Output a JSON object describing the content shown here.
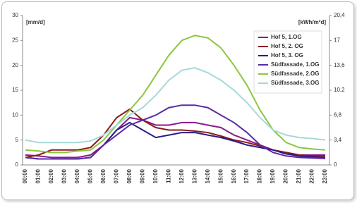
{
  "chart_data": {
    "type": "line",
    "y_label": "[mm/d]",
    "y2_label": "[kWh/m²d]",
    "categories": [
      "00:00",
      "01:00",
      "02:00",
      "03:00",
      "04:00",
      "05:00",
      "06:00",
      "07:00",
      "08:00",
      "09:00",
      "10:00",
      "11:00",
      "12:00",
      "13:00",
      "14:00",
      "15:00",
      "16:00",
      "17:00",
      "18:00",
      "19:00",
      "20:00",
      "21:00",
      "22:00",
      "23:00"
    ],
    "ylim": [
      0,
      30
    ],
    "yticks": [
      0,
      5,
      10,
      15,
      20,
      25,
      30
    ],
    "y2lim": [
      0,
      20.4
    ],
    "y2ticks": [
      0,
      {
        "value": 3.4,
        "label": "3,4"
      },
      {
        "value": 6.8,
        "label": "6,8"
      },
      {
        "value": 10.2,
        "label": "10,2"
      },
      {
        "value": 13.6,
        "label": "13,6"
      },
      17,
      {
        "value": 20.4,
        "label": "20,4"
      }
    ],
    "series": [
      {
        "name": "Hof 5, 1.OG",
        "color": "#8b1a8b",
        "values": [
          2,
          1.8,
          1.5,
          1.5,
          1.5,
          2,
          4,
          7,
          9.5,
          9,
          8,
          8,
          8.5,
          8.5,
          8,
          7.5,
          6,
          5,
          4,
          3,
          2.5,
          2,
          2,
          2
        ]
      },
      {
        "name": "Hof 5, 2. OG",
        "color": "#8b1a1a",
        "values": [
          1.5,
          2,
          3,
          3,
          3,
          3.5,
          6,
          9.5,
          11.2,
          9,
          7.5,
          7,
          7,
          6.8,
          6.5,
          5.8,
          5,
          4.5,
          3.8,
          3,
          2.5,
          2,
          1.8,
          1.8
        ]
      },
      {
        "name": "Hof 5, 3. OG",
        "color": "#2a1a8b",
        "values": [
          1.5,
          1.2,
          1.2,
          1.2,
          1.2,
          1.5,
          4,
          7,
          8.5,
          7,
          5.5,
          6,
          6.5,
          6.5,
          6,
          5.5,
          4.8,
          4,
          3.5,
          3,
          2.2,
          1.8,
          1.6,
          1.5
        ]
      },
      {
        "name": "Südfassade, 1.OG",
        "color": "#5a2aa8",
        "values": [
          1.5,
          1.2,
          1.2,
          1.2,
          1.2,
          1.5,
          4,
          6,
          8,
          9,
          10,
          11.5,
          12,
          12,
          11.5,
          10,
          8.5,
          6.5,
          4,
          2.5,
          1.8,
          1.5,
          1.4,
          1.3
        ]
      },
      {
        "name": "Südfassade, 2.OG",
        "color": "#8cc63f",
        "values": [
          3,
          2.8,
          2.5,
          2.5,
          2.8,
          3,
          5,
          8,
          11,
          14,
          18,
          22,
          25,
          26,
          25.5,
          23.5,
          20,
          16,
          11,
          7,
          4.5,
          3.5,
          3.2,
          3
        ]
      },
      {
        "name": "Südfassade, 3.OG",
        "color": "#a8d8d8",
        "values": [
          5,
          4.5,
          4.5,
          4.5,
          4.5,
          4.8,
          6,
          8,
          10,
          11.5,
          14,
          17,
          19,
          19.5,
          18.5,
          17,
          15,
          12.5,
          9.5,
          7,
          6,
          5.5,
          5.3,
          5
        ]
      }
    ]
  }
}
